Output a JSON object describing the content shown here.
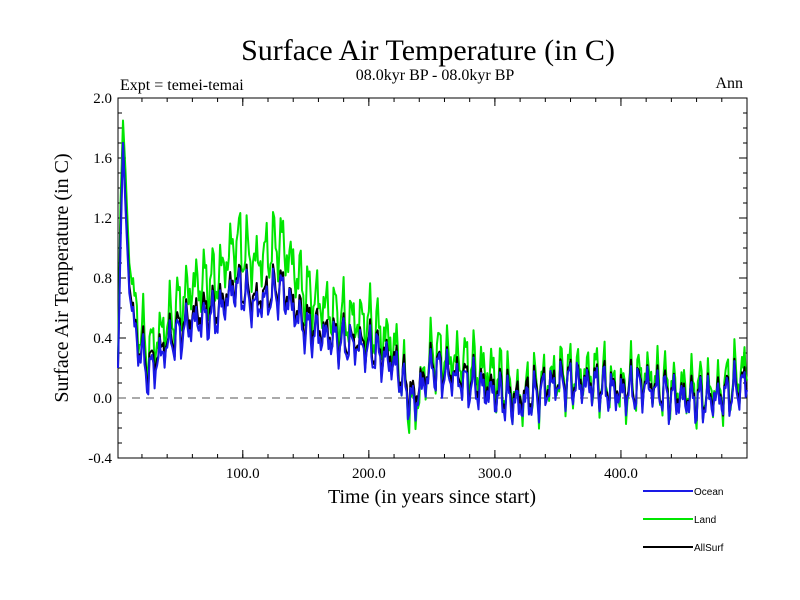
{
  "chart_data": {
    "type": "line",
    "title": "Surface Air Temperature (in C)",
    "subtitle": "08.0kyr BP - 08.0kyr BP",
    "left_note": "Expt = temei-temai",
    "right_note": "Ann",
    "xlabel": "Time (in years since start)",
    "ylabel": "Surface Air Temperature (in C)",
    "xlim": [
      1,
      500
    ],
    "ylim": [
      -0.4,
      2.0
    ],
    "x_ticks": [
      100,
      200,
      300,
      400
    ],
    "x_tick_labels": [
      "100.0",
      "200.0",
      "300.0",
      "400.0"
    ],
    "y_ticks": [
      -0.4,
      0.0,
      0.4,
      0.8,
      1.2,
      1.6,
      2.0
    ],
    "y_tick_labels": [
      "-0.4",
      "0.0",
      "0.4",
      "0.8",
      "1.2",
      "1.6",
      "2.0"
    ],
    "reference_line": 0.0,
    "series": [
      {
        "name": "Land",
        "color": "#00e600",
        "keypoints": [
          [
            1,
            0.25
          ],
          [
            3,
            1.3
          ],
          [
            5,
            1.85
          ],
          [
            7,
            1.5
          ],
          [
            10,
            0.9
          ],
          [
            15,
            0.55
          ],
          [
            25,
            0.3
          ],
          [
            40,
            0.5
          ],
          [
            60,
            0.75
          ],
          [
            80,
            0.8
          ],
          [
            95,
            1.05
          ],
          [
            110,
            0.9
          ],
          [
            130,
            1.05
          ],
          [
            150,
            0.7
          ],
          [
            175,
            0.55
          ],
          [
            200,
            0.5
          ],
          [
            220,
            0.35
          ],
          [
            235,
            -0.1
          ],
          [
            250,
            0.3
          ],
          [
            270,
            0.25
          ],
          [
            300,
            0.15
          ],
          [
            320,
            0.0
          ],
          [
            350,
            0.15
          ],
          [
            380,
            0.15
          ],
          [
            400,
            0.05
          ],
          [
            420,
            0.15
          ],
          [
            440,
            0.05
          ],
          [
            460,
            0.05
          ],
          [
            480,
            0.05
          ],
          [
            500,
            0.2
          ]
        ],
        "amp": 0.33
      },
      {
        "name": "AllSurf",
        "color": "#000000",
        "keypoints": [
          [
            1,
            0.2
          ],
          [
            3,
            1.1
          ],
          [
            5,
            1.7
          ],
          [
            7,
            1.3
          ],
          [
            10,
            0.75
          ],
          [
            15,
            0.42
          ],
          [
            25,
            0.2
          ],
          [
            40,
            0.38
          ],
          [
            60,
            0.55
          ],
          [
            80,
            0.6
          ],
          [
            95,
            0.78
          ],
          [
            110,
            0.65
          ],
          [
            130,
            0.75
          ],
          [
            150,
            0.5
          ],
          [
            175,
            0.4
          ],
          [
            200,
            0.35
          ],
          [
            220,
            0.25
          ],
          [
            235,
            0.0
          ],
          [
            250,
            0.22
          ],
          [
            270,
            0.15
          ],
          [
            300,
            0.05
          ],
          [
            320,
            0.0
          ],
          [
            350,
            0.12
          ],
          [
            380,
            0.1
          ],
          [
            400,
            0.05
          ],
          [
            420,
            0.1
          ],
          [
            440,
            0.02
          ],
          [
            460,
            0.0
          ],
          [
            480,
            0.02
          ],
          [
            500,
            0.12
          ]
        ],
        "amp": 0.22
      },
      {
        "name": "Ocean",
        "color": "#1a1ae6",
        "keypoints": [
          [
            1,
            0.2
          ],
          [
            3,
            1.0
          ],
          [
            5,
            1.7
          ],
          [
            7,
            1.25
          ],
          [
            10,
            0.7
          ],
          [
            15,
            0.4
          ],
          [
            25,
            0.15
          ],
          [
            40,
            0.35
          ],
          [
            60,
            0.5
          ],
          [
            80,
            0.55
          ],
          [
            95,
            0.75
          ],
          [
            110,
            0.6
          ],
          [
            130,
            0.72
          ],
          [
            150,
            0.45
          ],
          [
            175,
            0.38
          ],
          [
            200,
            0.32
          ],
          [
            220,
            0.22
          ],
          [
            235,
            -0.05
          ],
          [
            250,
            0.2
          ],
          [
            270,
            0.12
          ],
          [
            300,
            0.02
          ],
          [
            320,
            -0.05
          ],
          [
            350,
            0.1
          ],
          [
            380,
            0.08
          ],
          [
            400,
            0.02
          ],
          [
            420,
            0.08
          ],
          [
            440,
            0.0
          ],
          [
            460,
            -0.02
          ],
          [
            480,
            0.0
          ],
          [
            500,
            0.1
          ]
        ],
        "amp": 0.22
      }
    ],
    "legend": [
      "Ocean",
      "Land",
      "AllSurf"
    ],
    "legend_colors": [
      "#1a1ae6",
      "#00e600",
      "#000000"
    ],
    "legend_placement": "below-right"
  }
}
